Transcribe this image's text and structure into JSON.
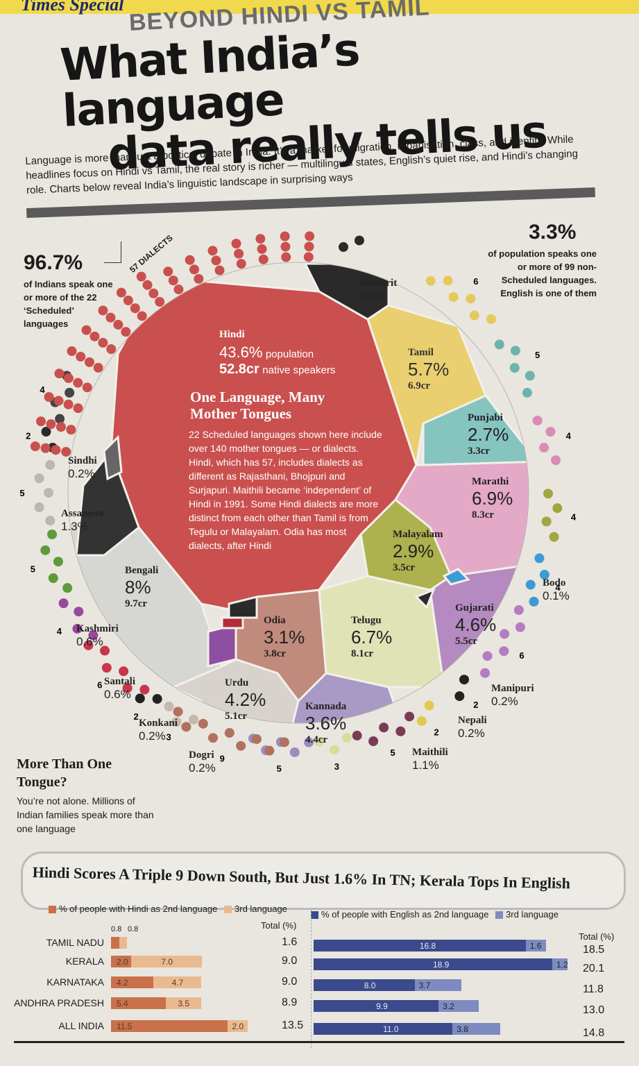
{
  "masthead": "Times Special",
  "kicker": "BEYOND HINDI VS TAMIL",
  "headline": [
    "What India’s language",
    "data really tells us"
  ],
  "intro": "Language is more than just a political debate in India. It’s a marker for migration, urbanisation, class, and identity. While headlines focus on Hindi vs Tamil, the real story is richer — multilingual states, English’s quiet rise, and Hindi’s changing role. Charts below reveal India’s linguistic landscape in surprising ways",
  "stat_left": {
    "value": "96.7%",
    "text": "of Indians speak one or more of the 22 ‘Scheduled’ languages"
  },
  "stat_right": {
    "value": "3.3%",
    "text": "of population speaks one or more of 99 non-Scheduled languages. English is one of them"
  },
  "dialects_label": "57 DIALECTS",
  "box": {
    "title": "One Language, Many Mother Tongues",
    "body": "22 Scheduled languages shown here include over 140 mother tongues — or dialects. Hindi, which has 57, includes dialects as different as Rajasthani, Bhojpuri and Surjapuri. Maithili became ‘independent’ of Hindi in 1991. Some Hindi dialects are more distinct from each other than Tamil is from Tegulu or Malayalam. Odia has most dialects, after Hindi"
  },
  "hindi": {
    "name": "Hindi",
    "pct": "43.6%",
    "pct_suffix": "population",
    "cr": "52.8cr",
    "cr_suffix": "native speakers"
  },
  "segments": [
    {
      "key": "tamil",
      "name": "Tamil",
      "pct": "5.7%",
      "cr": "6.9cr"
    },
    {
      "key": "punjabi",
      "name": "Punjabi",
      "pct": "2.7%",
      "cr": "3.3cr"
    },
    {
      "key": "marathi",
      "name": "Marathi",
      "pct": "6.9%",
      "cr": "8.3cr"
    },
    {
      "key": "malayalam",
      "name": "Malayalam",
      "pct": "2.9%",
      "cr": "3.5cr"
    },
    {
      "key": "gujarati",
      "name": "Gujarati",
      "pct": "4.6%",
      "cr": "5.5cr"
    },
    {
      "key": "telugu",
      "name": "Telugu",
      "pct": "6.7%",
      "cr": "8.1cr"
    },
    {
      "key": "odia",
      "name": "Odia",
      "pct": "3.1%",
      "cr": "3.8cr"
    },
    {
      "key": "kannada",
      "name": "Kannada",
      "pct": "3.6%",
      "cr": "4.4cr"
    },
    {
      "key": "urdu",
      "name": "Urdu",
      "pct": "4.2%",
      "cr": "5.1cr"
    },
    {
      "key": "bengali",
      "name": "Bengali",
      "pct": "8%",
      "cr": "9.7cr"
    }
  ],
  "small_langs": [
    {
      "key": "sanskrit",
      "name": "Sanskrit",
      "pct": "<1%"
    },
    {
      "key": "sindhi",
      "name": "Sindhi",
      "pct": "0.2%"
    },
    {
      "key": "assamese",
      "name": "Assamese",
      "pct": "1.3%"
    },
    {
      "key": "kashmiri",
      "name": "Kashmiri",
      "pct": "0.6%"
    },
    {
      "key": "santali",
      "name": "Santali",
      "pct": "0.6%"
    },
    {
      "key": "konkani",
      "name": "Konkani",
      "pct": "0.2%"
    },
    {
      "key": "dogri",
      "name": "Dogri",
      "pct": "0.2%"
    },
    {
      "key": "bodo",
      "name": "Bodo",
      "pct": "0.1%"
    },
    {
      "key": "manipuri",
      "name": "Manipuri",
      "pct": "0.2%"
    },
    {
      "key": "nepali",
      "name": "Nepali",
      "pct": "0.2%"
    },
    {
      "key": "maithili",
      "name": "Maithili",
      "pct": "1.1%"
    }
  ],
  "dialect_counts": {
    "sanskrit": "2",
    "tamil": "6",
    "punjabi": "5",
    "marathi": "4",
    "malayalam": "4",
    "bodo": "4",
    "gujarati": "6",
    "manipuri": "2",
    "nepali": "2",
    "maithili": "5",
    "telugu": "3",
    "kannada": "5",
    "odia": "9",
    "urdu": "3",
    "dogri": "2",
    "konkani": "6",
    "santali": "4",
    "kashmiri": "5",
    "bengali": "5",
    "assamese": "2",
    "sindhi": "4"
  },
  "tongue": {
    "title": "More Than One Tongue?",
    "body": "You’re not alone. Millions of Indian families speak more than one language"
  },
  "table": {
    "title": "Hindi Scores A Triple 9 Down South, But Just 1.6% In TN; Kerala Tops In English",
    "hindi_legend_2nd": "% of people with Hindi as 2nd language",
    "hindi_legend_3rd": "3rd language",
    "english_legend_2nd": "% of people with English as 2nd language",
    "english_legend_3rd": "3rd language",
    "total_label": "Total (%)",
    "total_label_right": "Total (%)",
    "tn_small_labels": [
      "0.8",
      "0.8"
    ],
    "colors": {
      "hindi2": "#c8714a",
      "hindi3": "#e9b98f",
      "eng2": "#3a4a8c",
      "eng3": "#7d8bc0"
    },
    "rows": [
      {
        "state": "TAMIL NADU",
        "h2": 0.8,
        "h3": 0.8,
        "h_total": "1.6",
        "e2": 16.8,
        "e3": 1.6,
        "e_total": "18.5",
        "h2_label": "",
        "h3_label": "",
        "e2_label": "16.8",
        "e3_label": "1.6"
      },
      {
        "state": "KERALA",
        "h2": 2.0,
        "h3": 7.0,
        "h_total": "9.0",
        "e2": 18.9,
        "e3": 1.2,
        "e_total": "20.1",
        "h2_label": "2.0",
        "h3_label": "7.0",
        "e2_label": "18.9",
        "e3_label": "1.2"
      },
      {
        "state": "KARNATAKA",
        "h2": 4.2,
        "h3": 4.7,
        "h_total": "9.0",
        "e2": 8.0,
        "e3": 3.7,
        "e_total": "11.8",
        "h2_label": "4.2",
        "h3_label": "4.7",
        "e2_label": "8.0",
        "e3_label": "3.7"
      },
      {
        "state": "ANDHRA PRADESH",
        "h2": 5.4,
        "h3": 3.5,
        "h_total": "8.9",
        "e2": 9.9,
        "e3": 3.2,
        "e_total": "13.0",
        "h2_label": "5.4",
        "h3_label": "3.5",
        "e2_label": "9.9",
        "e3_label": "3.2"
      },
      {
        "state": "ALL INDIA",
        "h2": 11.5,
        "h3": 2.0,
        "h_total": "13.5",
        "e2": 11.0,
        "e3": 3.8,
        "e_total": "14.8",
        "h2_label": "11.5",
        "h3_label": "2.0",
        "e2_label": "11.0",
        "e3_label": "3.8"
      }
    ]
  },
  "palette": {
    "hindi": "#c9504e",
    "tamil": "#e9cf6f",
    "punjabi": "#86c4c0",
    "marathi": "#e4a9c7",
    "malayalam": "#adb14e",
    "gujarati": "#b48ac0",
    "telugu": "#dfe3b6",
    "odia": "#c08a7c",
    "kannada": "#a89ac4",
    "urdu": "#d8d2cc",
    "bengali": "#d6d6d3",
    "sanskrit": "#2a2a2a",
    "assamese": "#333333"
  }
}
